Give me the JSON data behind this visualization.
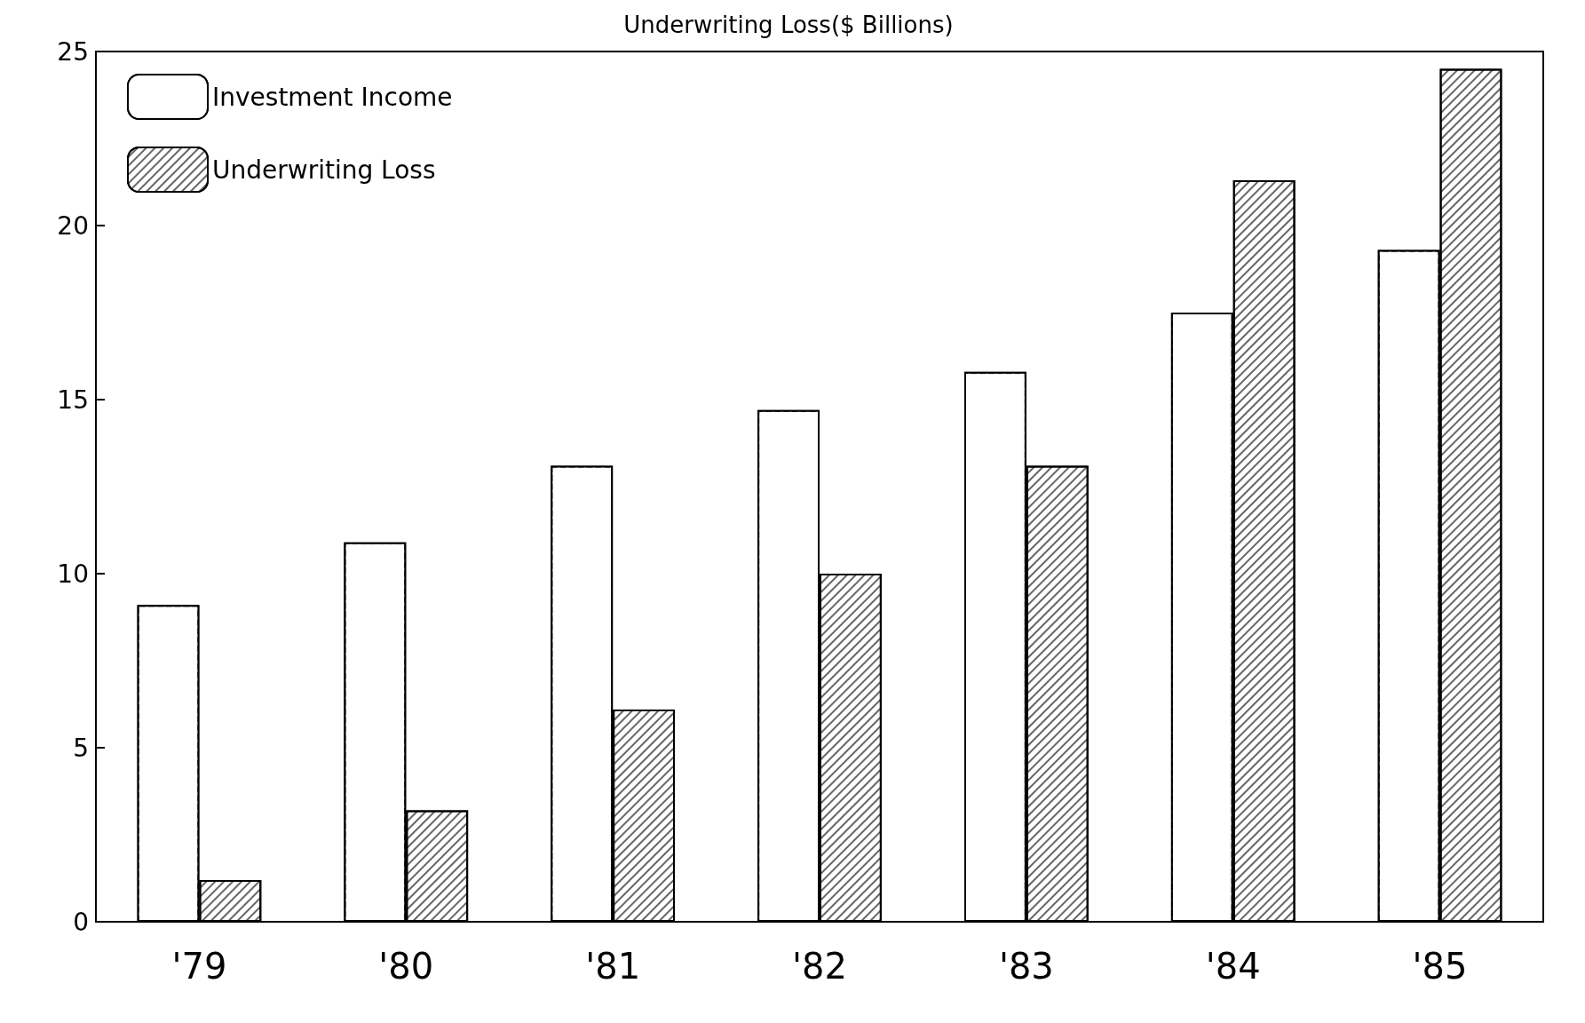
{
  "chart_data": {
    "type": "bar",
    "title": "Underwriting Loss($ Billions)",
    "categories": [
      "'79",
      "'80",
      "'81",
      "'82",
      "'83",
      "'84",
      "'85"
    ],
    "series": [
      {
        "name": "Investment Income",
        "color": "#ffffff",
        "values": [
          9.1,
          10.9,
          13.1,
          14.7,
          15.8,
          17.5,
          19.3
        ]
      },
      {
        "name": "Underwriting Loss",
        "color": "#000000",
        "values": [
          1.2,
          3.2,
          6.1,
          10.0,
          13.1,
          21.3,
          24.5
        ]
      }
    ],
    "ylim": [
      0,
      25
    ],
    "yticks": [
      0,
      5,
      10,
      15,
      20,
      25
    ],
    "grid": false,
    "legend": "top left"
  }
}
